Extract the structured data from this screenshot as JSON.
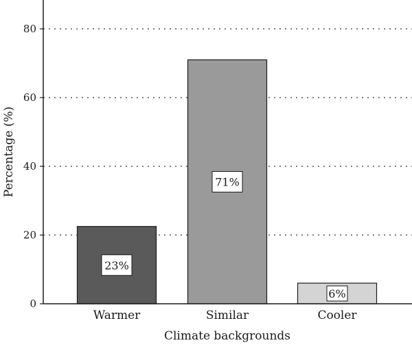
{
  "chart_data": {
    "type": "bar",
    "categories": [
      "Warmer",
      "Similar",
      "Cooler"
    ],
    "values": [
      22.5,
      71,
      6
    ],
    "value_labels": [
      "23%",
      "71%",
      "6%"
    ],
    "bar_colors": [
      "#5a5a5a",
      "#9a9a9a",
      "#d4d4d4"
    ],
    "title": "",
    "xlabel": "Climate backgrounds",
    "ylabel": "Percentage (%)",
    "ylim": [
      0,
      90
    ],
    "yticks": [
      0,
      20,
      40,
      60,
      80
    ],
    "ytick_labels": [
      "0",
      "20",
      "40",
      "60",
      "80"
    ],
    "grid": "horizontal dotted",
    "legend": "none"
  }
}
